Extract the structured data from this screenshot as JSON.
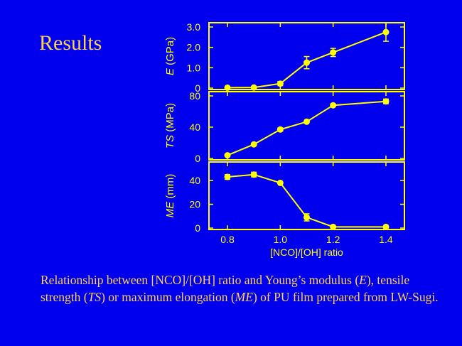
{
  "slide": {
    "title": "Results",
    "caption": {
      "part1": "Relationship between [NCO]/[OH] ratio and Young’s modulus (",
      "e_symbol": "E",
      "part2": "), tensile strength (",
      "ts_symbol": "TS",
      "part3": ") or maximum elongation (",
      "me_symbol": "ME",
      "part4": ") of PU film prepared from LW-Sugi."
    }
  },
  "colors": {
    "background": "#0000ee",
    "foreground": "#ffff00",
    "caption": "#ffd24d"
  },
  "chart_data": {
    "type": "line",
    "x": [
      0.8,
      0.9,
      1.0,
      1.1,
      1.2,
      1.4
    ],
    "xlabel": "[NCO]/[OH] ratio",
    "xlim": [
      0.73,
      1.47
    ],
    "xticks": [
      "0.8",
      "1.0",
      "1.2",
      "1.4"
    ],
    "grid": false,
    "panels": [
      {
        "id": "E",
        "ylabel_symbol": "E",
        "ylabel_unit": "(GPa)",
        "ylim": [
          0,
          3.0
        ],
        "yticks": [
          "0",
          "1.0",
          "2.0",
          "3.0"
        ],
        "values": [
          0.02,
          0.03,
          0.22,
          1.25,
          1.75,
          2.75
        ],
        "errors": [
          0.0,
          0.0,
          0.1,
          0.3,
          0.2,
          0.45
        ]
      },
      {
        "id": "TS",
        "ylabel_symbol": "TS",
        "ylabel_unit": "(MPa)",
        "ylim": [
          0,
          80
        ],
        "yticks": [
          "0",
          "40",
          "80"
        ],
        "values": [
          4,
          18,
          37,
          47,
          68,
          73
        ],
        "errors": [
          0,
          0,
          2,
          0,
          0,
          3
        ]
      },
      {
        "id": "ME",
        "ylabel_symbol": "ME",
        "ylabel_unit": "(mm)",
        "ylim": [
          0,
          52
        ],
        "yticks": [
          "0",
          "20",
          "40"
        ],
        "values": [
          43,
          45,
          38,
          9,
          1,
          1
        ],
        "errors": [
          2,
          2,
          0,
          3,
          0,
          0
        ]
      }
    ]
  }
}
